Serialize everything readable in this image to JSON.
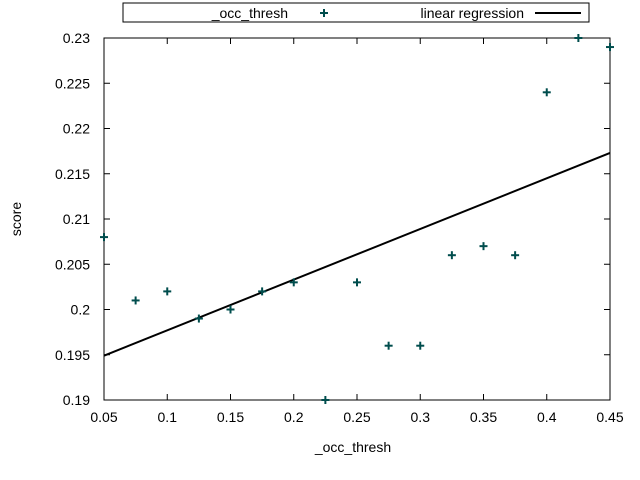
{
  "chart_data": {
    "type": "scatter",
    "xlabel": "_occ_thresh",
    "ylabel": "score",
    "xlim": [
      0.05,
      0.45
    ],
    "ylim": [
      0.19,
      0.23
    ],
    "x_ticks": [
      0.05,
      0.1,
      0.15,
      0.2,
      0.25,
      0.3,
      0.35,
      0.4,
      0.45
    ],
    "x_tick_labels": [
      "0.05",
      "0.1",
      "0.15",
      "0.2",
      "0.25",
      "0.3",
      "0.35",
      "0.4",
      "0.45"
    ],
    "y_ticks": [
      0.19,
      0.195,
      0.2,
      0.205,
      0.21,
      0.215,
      0.22,
      0.225,
      0.23
    ],
    "y_tick_labels": [
      "0.19",
      "0.195",
      "0.2",
      "0.205",
      "0.21",
      "0.215",
      "0.22",
      "0.225",
      "0.23"
    ],
    "grid": false,
    "legend_position": "top",
    "series": [
      {
        "name": "_occ_thresh",
        "kind": "points",
        "marker": "plus",
        "color": "#004d4d",
        "x": [
          0.05,
          0.075,
          0.1,
          0.125,
          0.15,
          0.175,
          0.2,
          0.225,
          0.25,
          0.275,
          0.3,
          0.325,
          0.35,
          0.375,
          0.4,
          0.425,
          0.45
        ],
        "y": [
          0.208,
          0.201,
          0.202,
          0.199,
          0.2,
          0.202,
          0.203,
          0.19,
          0.203,
          0.196,
          0.196,
          0.206,
          0.207,
          0.206,
          0.224,
          0.23,
          0.229
        ]
      },
      {
        "name": "linear regression",
        "kind": "line",
        "color": "#000000",
        "x": [
          0.05,
          0.45
        ],
        "y": [
          0.1949,
          0.2173
        ]
      }
    ]
  }
}
